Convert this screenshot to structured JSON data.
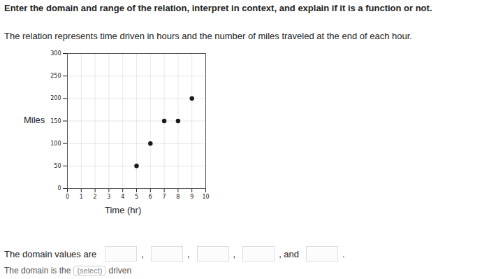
{
  "instructions": "Enter the domain and range of the relation, interpret in context, and explain if it is a function or not.",
  "context": "The relation represents time driven in hours and the number of miles traveled at the end of each hour.",
  "chart_data": {
    "type": "scatter",
    "x": [
      5,
      6,
      7,
      8,
      9
    ],
    "values": [
      50,
      100,
      150,
      150,
      200
    ],
    "x_label": "Time (hr)",
    "y_label": "Miles",
    "xlim": [
      0,
      10
    ],
    "ylim": [
      0,
      300
    ],
    "xticks": [
      0,
      1,
      2,
      3,
      4,
      5,
      6,
      7,
      8,
      9,
      10
    ],
    "yticks": [
      0,
      50,
      100,
      150,
      200,
      250,
      300
    ],
    "grid": true,
    "color": "#1a1a1a",
    "marker": "circle"
  },
  "answer": {
    "prompt": "The domain values are",
    "separators": [
      ",",
      ",",
      ",",
      ", and",
      "."
    ],
    "sentence": [
      "The domain is the",
      "(select)",
      "driven"
    ]
  }
}
